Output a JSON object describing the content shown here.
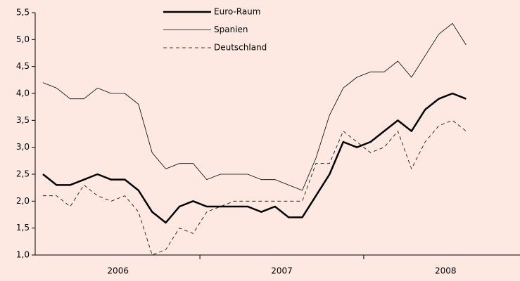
{
  "chart_data": {
    "type": "line",
    "categories": [
      null,
      null,
      null,
      null,
      null,
      null,
      null,
      null,
      null,
      null,
      null,
      null,
      null,
      null,
      null,
      null,
      null,
      null,
      null,
      null,
      null,
      null,
      null,
      null,
      null,
      null,
      null,
      null,
      null,
      null,
      null,
      null
    ],
    "x_groups": [
      "2006",
      "2007",
      "2008"
    ],
    "ylim": [
      1.0,
      5.5
    ],
    "yticks": [
      {
        "value": 1.0,
        "label": "1,0"
      },
      {
        "value": 1.5,
        "label": "1,5"
      },
      {
        "value": 2.0,
        "label": "2,0"
      },
      {
        "value": 2.5,
        "label": "2,5"
      },
      {
        "value": 3.0,
        "label": "3,0"
      },
      {
        "value": 3.5,
        "label": "3,5"
      },
      {
        "value": 4.0,
        "label": "4,0"
      },
      {
        "value": 4.5,
        "label": "4,5"
      },
      {
        "value": 5.0,
        "label": "5,0"
      },
      {
        "value": 5.5,
        "label": "5,5"
      }
    ],
    "grid": false,
    "legend": "top",
    "series": [
      {
        "name": "Euro-Raum",
        "color": "#000000",
        "width": 2.5,
        "dash": "none",
        "values": [
          2.5,
          2.3,
          2.3,
          2.4,
          2.5,
          2.4,
          2.4,
          2.2,
          1.8,
          1.6,
          1.9,
          2.0,
          1.9,
          1.9,
          1.9,
          1.9,
          1.8,
          1.9,
          1.7,
          1.7,
          2.1,
          2.5,
          3.1,
          3.0,
          3.1,
          3.3,
          3.5,
          3.3,
          3.7,
          3.9,
          4.0,
          3.9
        ]
      },
      {
        "name": "Spanien",
        "color": "#000000",
        "width": 0.8,
        "dash": "none",
        "values": [
          4.2,
          4.1,
          3.9,
          3.9,
          4.1,
          4.0,
          4.0,
          3.8,
          2.9,
          2.6,
          2.7,
          2.7,
          2.4,
          2.5,
          2.5,
          2.5,
          2.4,
          2.4,
          2.3,
          2.2,
          2.8,
          3.6,
          4.1,
          4.3,
          4.4,
          4.4,
          4.6,
          4.3,
          4.7,
          5.1,
          5.3,
          4.9
        ]
      },
      {
        "name": "Deutschland",
        "color": "#000000",
        "width": 0.8,
        "dash": "5,4",
        "values": [
          2.1,
          2.1,
          1.9,
          2.3,
          2.1,
          2.0,
          2.1,
          1.8,
          1.0,
          1.1,
          1.5,
          1.4,
          1.8,
          1.9,
          2.0,
          2.0,
          2.0,
          2.0,
          2.0,
          2.0,
          2.7,
          2.7,
          3.3,
          3.1,
          2.9,
          3.0,
          3.3,
          2.6,
          3.1,
          3.4,
          3.5,
          3.3
        ]
      }
    ]
  }
}
